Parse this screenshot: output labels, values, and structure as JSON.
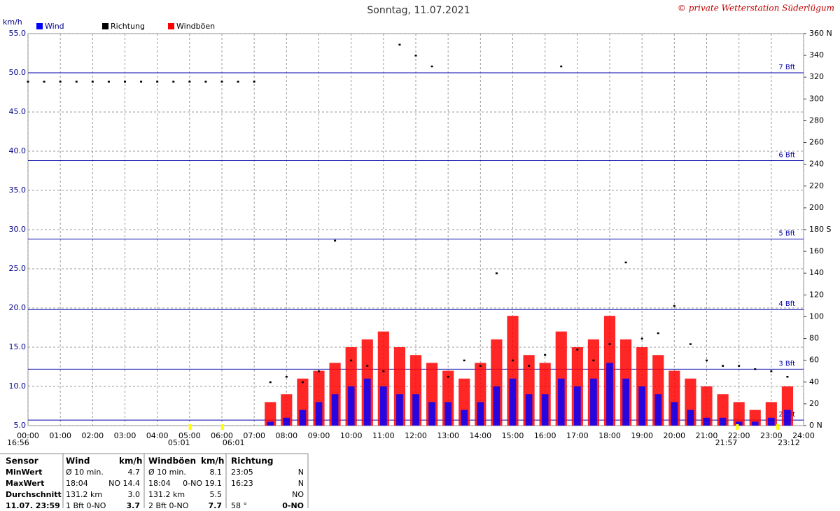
{
  "header": {
    "title": "Sonntag, 11.07.2021",
    "copyright": "© private Wetterstation Süderlügum",
    "unit": "km/h"
  },
  "chart_data": {
    "type": "weather",
    "x": [
      0,
      0.5,
      1,
      1.5,
      2,
      2.5,
      3,
      3.5,
      4,
      4.5,
      5,
      5.5,
      6,
      6.5,
      7,
      7.5,
      8,
      8.5,
      9,
      9.5,
      10,
      10.5,
      11,
      11.5,
      12,
      12.5,
      13,
      13.5,
      14,
      14.5,
      15,
      15.5,
      16,
      16.5,
      17,
      17.5,
      18,
      18.5,
      19,
      19.5,
      20,
      20.5,
      21,
      21.5,
      22,
      22.5,
      23,
      23.5
    ],
    "series": [
      {
        "name": "Wind",
        "color": "#0000ff",
        "style": "bar",
        "values": [
          null,
          null,
          null,
          null,
          null,
          null,
          null,
          null,
          null,
          null,
          null,
          null,
          null,
          null,
          null,
          5.5,
          6,
          7,
          8,
          9,
          10,
          11,
          10,
          9,
          9,
          8,
          8,
          7,
          8,
          10,
          11,
          9,
          9,
          11,
          10,
          11,
          13,
          11,
          10,
          9,
          8,
          7,
          6,
          6,
          5.5,
          5.5,
          6,
          7
        ]
      },
      {
        "name": "Richtung",
        "color": "#000000",
        "style": "dot",
        "axis": "y2",
        "values": [
          316,
          316,
          316,
          316,
          316,
          316,
          316,
          316,
          316,
          316,
          316,
          316,
          316,
          316,
          316,
          40,
          45,
          40,
          50,
          170,
          60,
          55,
          50,
          350,
          340,
          330,
          45,
          60,
          55,
          140,
          60,
          55,
          65,
          330,
          70,
          60,
          75,
          150,
          80,
          85,
          110,
          75,
          60,
          55,
          55,
          52,
          50,
          45
        ]
      },
      {
        "name": "Windböen",
        "color": "#ff0000",
        "style": "bar",
        "values": [
          null,
          null,
          null,
          null,
          null,
          null,
          null,
          null,
          null,
          null,
          null,
          null,
          null,
          null,
          null,
          8,
          9,
          11,
          12,
          13,
          15,
          16,
          17,
          15,
          14,
          13,
          12,
          11,
          13,
          16,
          19,
          14,
          13,
          17,
          15,
          16,
          19,
          16,
          15,
          14,
          12,
          11,
          10,
          9,
          8,
          7,
          8,
          10
        ]
      }
    ],
    "xlim": [
      0,
      24
    ],
    "xticks": [
      {
        "value": 0,
        "label": "00:00"
      },
      {
        "value": 1,
        "label": "01:00"
      },
      {
        "value": 2,
        "label": "02:00"
      },
      {
        "value": 3,
        "label": "03:00"
      },
      {
        "value": 4,
        "label": "04:00"
      },
      {
        "value": 5,
        "label": "05:00"
      },
      {
        "value": 6,
        "label": "06:00"
      },
      {
        "value": 7,
        "label": "07:00"
      },
      {
        "value": 8,
        "label": "08:00"
      },
      {
        "value": 9,
        "label": "09:00"
      },
      {
        "value": 10,
        "label": "10:00"
      },
      {
        "value": 11,
        "label": "11:00"
      },
      {
        "value": 12,
        "label": "12:00"
      },
      {
        "value": 13,
        "label": "13:00"
      },
      {
        "value": 14,
        "label": "14:00"
      },
      {
        "value": 15,
        "label": "15:00"
      },
      {
        "value": 16,
        "label": "16:00"
      },
      {
        "value": 17,
        "label": "17:00"
      },
      {
        "value": 18,
        "label": "18:00"
      },
      {
        "value": 19,
        "label": "19:00"
      },
      {
        "value": 20,
        "label": "20:00"
      },
      {
        "value": 21,
        "label": "21:00"
      },
      {
        "value": 22,
        "label": "22:00"
      },
      {
        "value": 23,
        "label": "23:00"
      },
      {
        "value": 24,
        "label": "24:00"
      }
    ],
    "ylim": [
      5,
      55
    ],
    "yticks": [
      {
        "value": 5,
        "label": "5.0"
      },
      {
        "value": 10,
        "label": "10.0"
      },
      {
        "value": 15,
        "label": "15.0"
      },
      {
        "value": 20,
        "label": "20.0"
      },
      {
        "value": 25,
        "label": "25.0"
      },
      {
        "value": 30,
        "label": "30.0"
      },
      {
        "value": 35,
        "label": "35.0"
      },
      {
        "value": 40,
        "label": "40.0"
      },
      {
        "value": 45,
        "label": "45.0"
      },
      {
        "value": 50,
        "label": "50.0"
      },
      {
        "value": 55,
        "label": "55.0"
      }
    ],
    "y2lim": [
      0,
      360
    ],
    "y2ticks": [
      {
        "value": 0,
        "label": "0 N"
      },
      20,
      40,
      60,
      80,
      100,
      120,
      140,
      160,
      {
        "value": 180,
        "label": "180 S"
      },
      200,
      220,
      240,
      260,
      280,
      300,
      320,
      340,
      {
        "value": 360,
        "label": "360 N"
      }
    ],
    "grid": true,
    "beaufort": [
      {
        "value": 5.7,
        "label": "2 Bft"
      },
      {
        "value": 12.2,
        "label": "3 Bft"
      },
      {
        "value": 19.8,
        "label": "4 Bft"
      },
      {
        "value": 28.8,
        "label": "5 Bft"
      },
      {
        "value": 38.8,
        "label": "6 Bft"
      },
      {
        "value": 50.0,
        "label": "7 Bft"
      }
    ],
    "sun_marks": [
      {
        "value": 5.017,
        "label": "05:01"
      },
      {
        "value": 6.017,
        "label": "06:01"
      },
      {
        "value": 21.95,
        "label": "21:57"
      },
      {
        "value": 23.2,
        "label": "23:12"
      }
    ],
    "day_length": "16:56"
  },
  "table": {
    "columns": [
      "Sensor",
      "Wind",
      "km/h",
      "Windböen",
      "km/h",
      "Richtung"
    ],
    "rows": [
      [
        "MinWert",
        "Ø 10 min.",
        "4.7",
        "Ø 10 min.",
        "8.1",
        "23:05",
        "N"
      ],
      [
        "MaxWert",
        "18:04",
        "NO 14.4",
        "18:04",
        "0-NO 19.1",
        "16:23",
        "N"
      ],
      [
        "Durchschnitt",
        "131.2 km",
        "3.0",
        "131.2 km",
        "5.5",
        "",
        "NO"
      ],
      [
        "11.07. 23:59",
        "1 Bft 0-NO",
        "3.7",
        "2 Bft 0-NO",
        "7.7",
        "58 °",
        "0-NO"
      ]
    ]
  }
}
